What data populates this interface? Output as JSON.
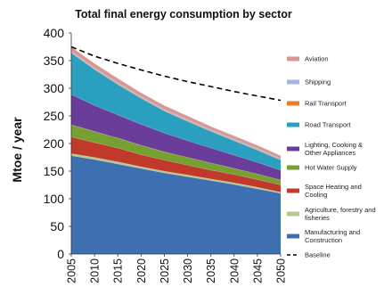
{
  "chart_data": {
    "type": "area",
    "stacked": true,
    "title": "Total final energy consumption by sector",
    "xlabel": "",
    "ylabel": "Mtoe / year",
    "x": [
      2005,
      2010,
      2015,
      2020,
      2025,
      2030,
      2035,
      2040,
      2045,
      2050
    ],
    "ylim": [
      0,
      400
    ],
    "yticks": [
      0,
      50,
      100,
      150,
      200,
      250,
      300,
      350,
      400
    ],
    "grid": false,
    "legend": "right",
    "series": [
      {
        "name": "Manufacturing and Construction",
        "color": "#3e6fb0",
        "values": [
          178,
          171,
          163,
          155,
          147,
          140,
          133,
          126,
          118,
          110
        ]
      },
      {
        "name": "Agriculture, forestry and fisheries",
        "color": "#b3c88a",
        "values": [
          4,
          4,
          4,
          3,
          3,
          3,
          3,
          3,
          3,
          2
        ]
      },
      {
        "name": "Space Heating and Cooling",
        "color": "#c0392b",
        "values": [
          30,
          27,
          25,
          22,
          20,
          18,
          16,
          15,
          14,
          13
        ]
      },
      {
        "name": "Hot Water Supply",
        "color": "#77a033",
        "values": [
          22,
          20,
          18,
          17,
          15,
          14,
          13,
          11,
          10,
          9
        ]
      },
      {
        "name": "Lighting, Cooking & Other Appliances",
        "color": "#6a3d9a",
        "values": [
          55,
          47,
          42,
          38,
          34,
          30,
          27,
          24,
          21,
          18
        ]
      },
      {
        "name": "Road Transport",
        "color": "#2a9fbf",
        "values": [
          75,
          65,
          55,
          47,
          40,
          35,
          30,
          26,
          22,
          18
        ]
      },
      {
        "name": "Rail Transport",
        "color": "#e67e22",
        "values": [
          1,
          1,
          1,
          1,
          1,
          1,
          1,
          1,
          1,
          1
        ]
      },
      {
        "name": "Shipping",
        "color": "#9eb7e0",
        "values": [
          2,
          2,
          2,
          2,
          2,
          2,
          2,
          2,
          2,
          2
        ]
      },
      {
        "name": "Aviation",
        "color": "#d99694",
        "values": [
          8,
          8,
          8,
          7,
          7,
          7,
          6,
          6,
          6,
          5
        ]
      }
    ],
    "baseline": {
      "name": "Baseline",
      "values": [
        375,
        358,
        345,
        333,
        322,
        312,
        303,
        294,
        286,
        278
      ]
    },
    "legend_order": [
      "Aviation",
      "Shipping",
      "Rail Transport",
      "Road Transport",
      "Lighting, Cooking & Other Appliances",
      "Hot Water Supply",
      "Space Heating and Cooling",
      "Agriculture, forestry and fisheries",
      "Manufacturing and Construction",
      "Baseline"
    ],
    "legend_lines": {
      "Lighting, Cooking & Other Appliances": [
        "Lighting, Cooking &",
        "Other Appliances"
      ],
      "Space Heating and Cooling": [
        "Space Heating and",
        "Cooling"
      ],
      "Agriculture, forestry and fisheries": [
        "Agriculture, forestry and",
        "fisheries"
      ],
      "Manufacturing and Construction": [
        "Manufacturing and",
        "Construction"
      ]
    }
  }
}
